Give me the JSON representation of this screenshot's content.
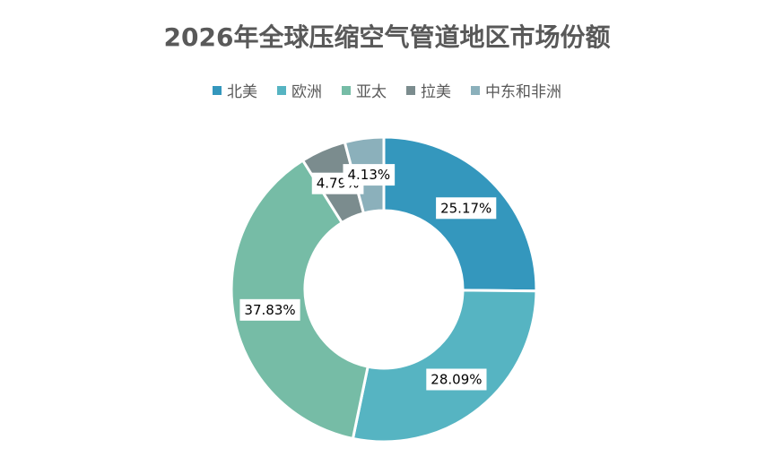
{
  "chart_data": {
    "type": "pie",
    "variant": "donut",
    "title": "2026年全球压缩空气管道地区市场份额",
    "categories": [
      "北美",
      "欧洲",
      "亚太",
      "拉美",
      "中东和非洲"
    ],
    "values": [
      25.17,
      28.09,
      37.83,
      4.79,
      4.13
    ],
    "value_labels": [
      "25.17%",
      "28.09%",
      "37.83%",
      "4.79%",
      "4.13%"
    ],
    "colors": [
      "#3497BD",
      "#56B4C2",
      "#76BCA6",
      "#7B8C8E",
      "#8BB0BB"
    ],
    "legend_position": "top",
    "start_angle": "12 o'clock",
    "direction": "clockwise"
  }
}
